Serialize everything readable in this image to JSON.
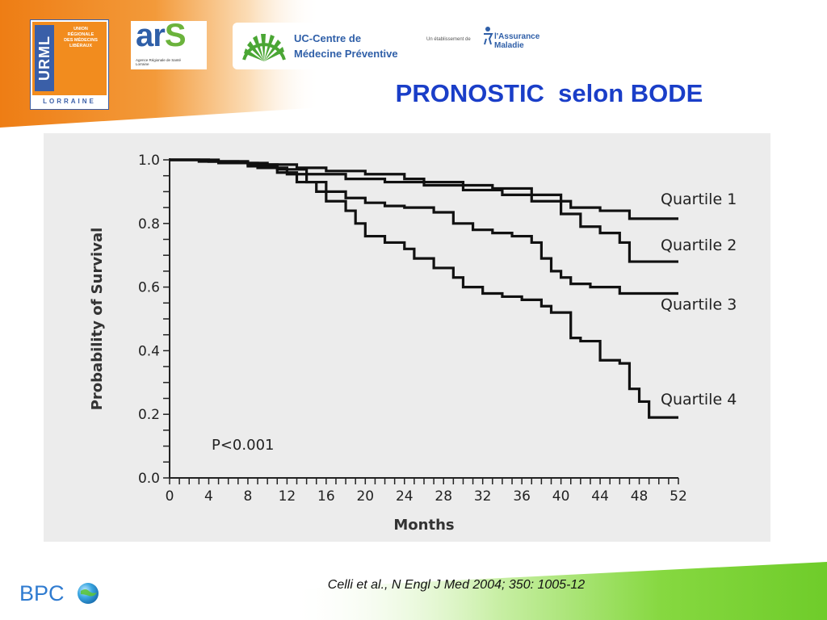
{
  "header": {
    "urml": {
      "vertical": "URML",
      "text_lines": [
        "UNION",
        "RÉGIONALE",
        "DES MÉDECINS",
        "LIBÉRAUX"
      ],
      "region": "LORRAINE"
    },
    "ars": {
      "wordmark_a": "ar",
      "wordmark_s": "S",
      "tagline_lines": [
        "Agence Régionale de Santé",
        "Lorraine"
      ]
    },
    "ucc": {
      "line1": "UC-Centre de",
      "line2": "Médecine Préventive"
    },
    "assurance": {
      "prefix": "Un établissement de",
      "name_lines": [
        "l'Assurance",
        "Maladie"
      ]
    }
  },
  "title": "PRONOSTIC  selon BODE",
  "citation": "Celli et al., N Engl J Med 2004; 350: 1005-12",
  "footer": {
    "logo_text": "BPC"
  },
  "colors": {
    "title": "#1a3ec8",
    "orange": "#f28c1e",
    "green": "#7dd13a",
    "curve": "#111111",
    "chart_bg": "#ececec"
  },
  "chart_data": {
    "type": "line",
    "title": "",
    "xlabel": "Months",
    "ylabel": "Probability of Survival",
    "xlim": [
      0,
      52
    ],
    "ylim": [
      0.0,
      1.0
    ],
    "xticks": [
      0,
      4,
      8,
      12,
      16,
      20,
      24,
      28,
      32,
      36,
      40,
      44,
      48,
      52
    ],
    "yticks": [
      "0.0",
      "0.2",
      "0.4",
      "0.6",
      "0.8",
      "1.0"
    ],
    "step": true,
    "annotation": "P<0.001",
    "series": [
      {
        "name": "Quartile 1",
        "x": [
          0,
          3,
          7,
          10,
          13,
          16,
          20,
          24,
          26,
          30,
          33,
          37,
          40,
          41,
          44,
          47,
          52
        ],
        "y": [
          1.0,
          0.995,
          0.99,
          0.985,
          0.975,
          0.965,
          0.955,
          0.94,
          0.93,
          0.92,
          0.91,
          0.89,
          0.87,
          0.85,
          0.84,
          0.815,
          0.815
        ]
      },
      {
        "name": "Quartile 2",
        "x": [
          0,
          4,
          8,
          11,
          14,
          18,
          22,
          26,
          30,
          34,
          37,
          40,
          42,
          44,
          46,
          47,
          52
        ],
        "y": [
          1.0,
          0.995,
          0.985,
          0.97,
          0.955,
          0.94,
          0.93,
          0.92,
          0.905,
          0.89,
          0.87,
          0.83,
          0.79,
          0.77,
          0.74,
          0.68,
          0.68
        ]
      },
      {
        "name": "Quartile 3",
        "x": [
          0,
          5,
          9,
          12,
          14,
          16,
          18,
          20,
          22,
          24,
          27,
          29,
          31,
          33,
          35,
          37,
          38,
          39,
          40,
          41,
          43,
          46,
          52
        ],
        "y": [
          1.0,
          0.99,
          0.975,
          0.955,
          0.93,
          0.9,
          0.88,
          0.865,
          0.855,
          0.85,
          0.835,
          0.8,
          0.78,
          0.77,
          0.76,
          0.74,
          0.69,
          0.65,
          0.63,
          0.61,
          0.6,
          0.58,
          0.58
        ]
      },
      {
        "name": "Quartile 4",
        "x": [
          0,
          4,
          8,
          11,
          13,
          15,
          16,
          18,
          19,
          20,
          22,
          24,
          25,
          27,
          29,
          30,
          32,
          34,
          36,
          38,
          39,
          41,
          42,
          44,
          46,
          47,
          48,
          49,
          52
        ],
        "y": [
          1.0,
          0.995,
          0.98,
          0.96,
          0.93,
          0.9,
          0.87,
          0.84,
          0.8,
          0.76,
          0.74,
          0.72,
          0.69,
          0.66,
          0.63,
          0.6,
          0.58,
          0.57,
          0.56,
          0.54,
          0.52,
          0.44,
          0.43,
          0.37,
          0.36,
          0.28,
          0.24,
          0.19,
          0.19
        ]
      }
    ]
  }
}
